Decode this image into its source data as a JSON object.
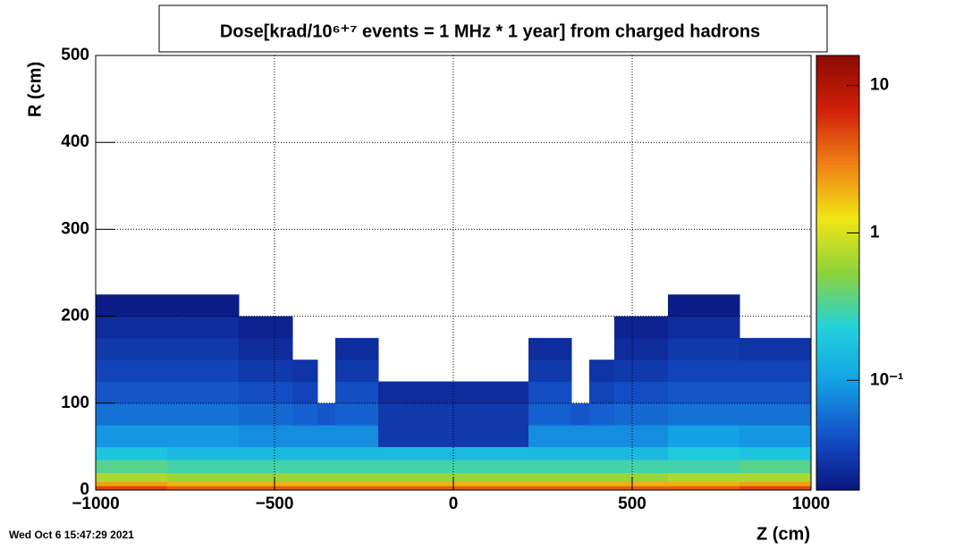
{
  "chart_data": {
    "type": "heatmap",
    "title": "Dose[krad/10⁶⁺⁷ events = 1 MHz * 1 year] from charged hadrons",
    "x_label": "Z (cm)",
    "y_label": "R (cm)",
    "timestamp": "Wed Oct  6 15:47:29 2021",
    "x_bins": [
      -1000,
      -800,
      -600,
      -450,
      -380,
      -330,
      -210,
      0,
      210,
      330,
      380,
      450,
      600,
      800,
      1000
    ],
    "y_bins": [
      0,
      5,
      10,
      20,
      35,
      50,
      75,
      100,
      125,
      150,
      175,
      200,
      225
    ],
    "values": [
      [
        5,
        4,
        4,
        4,
        4,
        4,
        4,
        4,
        4,
        4,
        4,
        4,
        4,
        5
      ],
      [
        2.2,
        2,
        2,
        2,
        2,
        2,
        2,
        2,
        2,
        2,
        2,
        2,
        2,
        2.2
      ],
      [
        0.7,
        0.6,
        0.6,
        0.6,
        0.6,
        0.6,
        0.6,
        0.6,
        0.6,
        0.6,
        0.6,
        0.6,
        0.7,
        0.7
      ],
      [
        0.35,
        0.3,
        0.3,
        0.3,
        0.3,
        0.3,
        0.3,
        0.3,
        0.3,
        0.3,
        0.3,
        0.3,
        0.3,
        0.35
      ],
      [
        0.18,
        0.15,
        0.15,
        0.15,
        0.15,
        0.15,
        0.15,
        0.15,
        0.15,
        0.15,
        0.15,
        0.15,
        0.2,
        0.18
      ],
      [
        0.09,
        0.09,
        0.08,
        0.08,
        0.08,
        0.08,
        0.03,
        0.03,
        0.08,
        0.08,
        0.08,
        0.08,
        0.1,
        0.09
      ],
      [
        0.06,
        0.06,
        0.055,
        0.05,
        0.045,
        0.05,
        0.03,
        0.03,
        0.05,
        0.045,
        0.05,
        0.055,
        0.06,
        0.06
      ],
      [
        0.045,
        0.045,
        0.04,
        0.035,
        null,
        0.04,
        0.025,
        0.025,
        0.04,
        null,
        0.035,
        0.04,
        0.045,
        0.045
      ],
      [
        0.035,
        0.035,
        0.03,
        0.028,
        null,
        0.03,
        null,
        null,
        0.03,
        null,
        0.028,
        0.03,
        0.035,
        0.035
      ],
      [
        0.03,
        0.03,
        0.025,
        null,
        null,
        0.025,
        null,
        null,
        0.025,
        null,
        null,
        0.025,
        0.03,
        0.028
      ],
      [
        0.025,
        0.025,
        0.022,
        null,
        null,
        null,
        null,
        null,
        null,
        null,
        null,
        0.022,
        0.025,
        null
      ],
      [
        0.02,
        0.02,
        null,
        null,
        null,
        null,
        null,
        null,
        null,
        null,
        null,
        null,
        0.02,
        null
      ]
    ],
    "xlim": [
      -1000,
      1000
    ],
    "xticks": [
      {
        "value": -1000,
        "label": "−1000"
      },
      {
        "value": -500,
        "label": "−500"
      },
      0,
      500,
      1000
    ],
    "ylim": [
      0,
      500
    ],
    "yticks": [
      0,
      100,
      200,
      300,
      400,
      500
    ],
    "zlim": [
      0.018,
      16
    ],
    "zlog": true,
    "zticks": [
      {
        "value": 0.1,
        "label": "10⁻¹"
      },
      1,
      10
    ],
    "palette": [
      "#0a1580",
      "#1450c8",
      "#14a0e6",
      "#22d2dc",
      "#8cd23c",
      "#f0e614",
      "#f08214",
      "#d2200a",
      "#8b0a00"
    ],
    "grid": true
  }
}
